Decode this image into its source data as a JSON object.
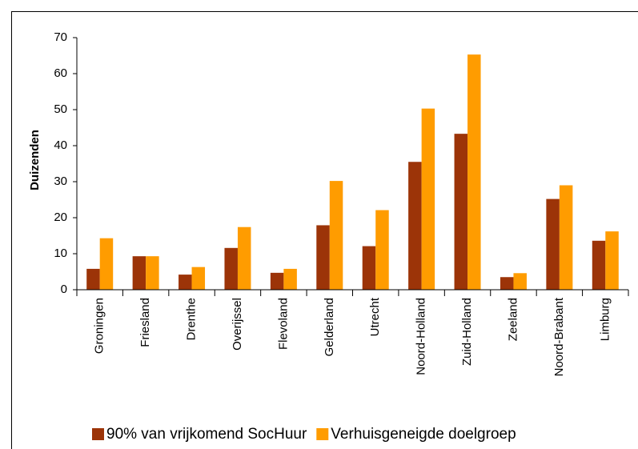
{
  "chart_data": {
    "type": "bar",
    "y_label": "Duizenden",
    "categories": [
      "Groningen",
      "Friesland",
      "Drenthe",
      "Overijssel",
      "Flevoland",
      "Gelderland",
      "Utrecht",
      "Noord-Holland",
      "Zuid-Holland",
      "Zeeland",
      "Noord-Brabant",
      "Limburg"
    ],
    "series": [
      {
        "name": "90% van vrijkomend SocHuur",
        "color": "#9c3408",
        "values": [
          5.8,
          9.3,
          4.2,
          11.6,
          4.7,
          17.9,
          12.1,
          35.5,
          43.3,
          3.5,
          25.2,
          13.6
        ]
      },
      {
        "name": "Verhuisgeneigde doelgroep",
        "color": "#ff9c00",
        "values": [
          14.3,
          9.3,
          6.3,
          17.4,
          5.8,
          30.2,
          22.1,
          50.3,
          65.3,
          4.6,
          29.0,
          16.2
        ]
      }
    ],
    "ylim": [
      0,
      70
    ],
    "yticks": [
      0,
      10,
      20,
      30,
      40,
      50,
      60,
      70
    ],
    "grid": false,
    "legend": "bottom"
  }
}
